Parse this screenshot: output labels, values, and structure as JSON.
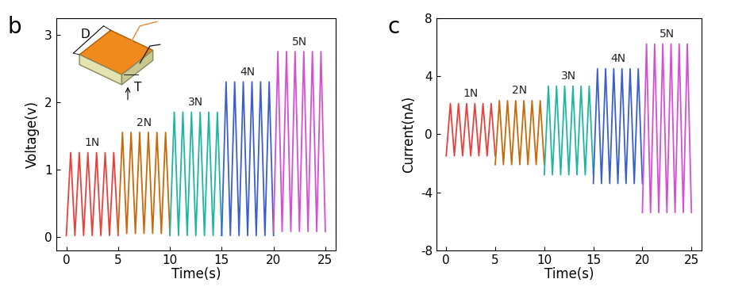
{
  "chart_data": [
    {
      "type": "line",
      "panel_label": "b",
      "x_label": "Time(s)",
      "y_label": "Voltage(v)",
      "xlim": [
        -1,
        26
      ],
      "xticks": [
        0,
        5,
        10,
        15,
        20,
        25
      ],
      "ylim": [
        -0.2,
        3.25
      ],
      "yticks": [
        0,
        1,
        2,
        3
      ],
      "inset_labels": [
        "D",
        "T"
      ],
      "series": [
        {
          "name": "1N",
          "color": "#e8413c",
          "x": [
            0,
            0.42,
            0.83,
            1.25,
            1.67,
            2.08,
            2.5,
            2.92,
            3.33,
            3.75,
            4.17,
            4.58,
            5.0
          ],
          "values": [
            0.02,
            1.25,
            0.02,
            1.25,
            0.02,
            1.25,
            0.02,
            1.25,
            0.02,
            1.25,
            0.02,
            1.25,
            0.02
          ]
        },
        {
          "name": "2N",
          "color": "#c8690a",
          "x": [
            5.0,
            5.42,
            5.83,
            6.25,
            6.67,
            7.08,
            7.5,
            7.92,
            8.33,
            8.75,
            9.17,
            9.58,
            10.0
          ],
          "values": [
            0.05,
            1.55,
            0.05,
            1.55,
            0.05,
            1.55,
            0.05,
            1.55,
            0.05,
            1.55,
            0.05,
            1.55,
            0.05
          ]
        },
        {
          "name": "3N",
          "color": "#1fb5a0",
          "x": [
            10.0,
            10.42,
            10.83,
            11.25,
            11.67,
            12.08,
            12.5,
            12.92,
            13.33,
            13.75,
            14.17,
            14.58,
            15.0
          ],
          "values": [
            0.02,
            1.85,
            0.02,
            1.85,
            0.02,
            1.85,
            0.02,
            1.85,
            0.02,
            1.85,
            0.02,
            1.85,
            0.02
          ]
        },
        {
          "name": "4N",
          "color": "#3a5fcd",
          "x": [
            15.0,
            15.42,
            15.83,
            16.25,
            16.67,
            17.08,
            17.5,
            17.92,
            18.33,
            18.75,
            19.17,
            19.58,
            20.0
          ],
          "values": [
            0.02,
            2.3,
            0.02,
            2.3,
            0.02,
            2.3,
            0.02,
            2.3,
            0.02,
            2.3,
            0.02,
            2.3,
            0.02
          ]
        },
        {
          "name": "5N",
          "color": "#d54fd5",
          "x": [
            20.0,
            20.42,
            20.83,
            21.25,
            21.67,
            22.08,
            22.5,
            22.92,
            23.33,
            23.75,
            24.17,
            24.58,
            25.0
          ],
          "values": [
            0.08,
            2.75,
            0.08,
            2.75,
            0.08,
            2.75,
            0.08,
            2.75,
            0.08,
            2.75,
            0.08,
            2.75,
            0.08
          ]
        }
      ]
    },
    {
      "type": "line",
      "panel_label": "c",
      "x_label": "Time(s)",
      "y_label": "Current(nA)",
      "xlim": [
        -1,
        26
      ],
      "xticks": [
        0,
        5,
        10,
        15,
        20,
        25
      ],
      "ylim": [
        -8,
        8
      ],
      "yticks": [
        -8,
        -4,
        0,
        4,
        8
      ],
      "series": [
        {
          "name": "1N",
          "color": "#e8413c",
          "x": [
            0,
            0.42,
            0.83,
            1.25,
            1.67,
            2.08,
            2.5,
            2.92,
            3.33,
            3.75,
            4.17,
            4.58,
            5.0
          ],
          "values": [
            -1.5,
            2.1,
            -1.5,
            2.1,
            -1.5,
            2.1,
            -1.5,
            2.1,
            -1.5,
            2.1,
            -1.5,
            2.1,
            -1.5
          ]
        },
        {
          "name": "2N",
          "color": "#c8690a",
          "x": [
            5.0,
            5.42,
            5.83,
            6.25,
            6.67,
            7.08,
            7.5,
            7.92,
            8.33,
            8.75,
            9.17,
            9.58,
            10.0
          ],
          "values": [
            -2.1,
            2.3,
            -2.1,
            2.3,
            -2.1,
            2.3,
            -2.1,
            2.3,
            -2.1,
            2.3,
            -2.1,
            2.3,
            -2.1
          ]
        },
        {
          "name": "3N",
          "color": "#1fb5a0",
          "x": [
            10.0,
            10.42,
            10.83,
            11.25,
            11.67,
            12.08,
            12.5,
            12.92,
            13.33,
            13.75,
            14.17,
            14.58,
            15.0
          ],
          "values": [
            -2.8,
            3.3,
            -2.8,
            3.3,
            -2.8,
            3.3,
            -2.8,
            3.3,
            -2.8,
            3.3,
            -2.8,
            3.3,
            -2.8
          ]
        },
        {
          "name": "4N",
          "color": "#3a5fcd",
          "x": [
            15.0,
            15.42,
            15.83,
            16.25,
            16.67,
            17.08,
            17.5,
            17.92,
            18.33,
            18.75,
            19.17,
            19.58,
            20.0
          ],
          "values": [
            -3.4,
            4.5,
            -3.4,
            4.5,
            -3.4,
            4.5,
            -3.4,
            4.5,
            -3.4,
            4.5,
            -3.4,
            4.5,
            -3.4
          ]
        },
        {
          "name": "5N",
          "color": "#d54fd5",
          "x": [
            20.0,
            20.42,
            20.83,
            21.25,
            21.67,
            22.08,
            22.5,
            22.92,
            23.33,
            23.75,
            24.17,
            24.58,
            25.0
          ],
          "values": [
            -5.4,
            6.2,
            -5.4,
            6.2,
            -5.4,
            6.2,
            -5.4,
            6.2,
            -5.4,
            6.2,
            -5.4,
            6.2,
            -5.4
          ]
        }
      ]
    }
  ]
}
